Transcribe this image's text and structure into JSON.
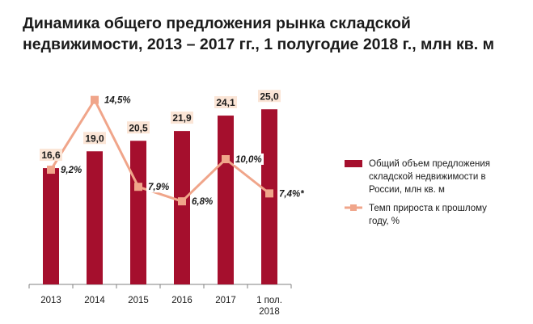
{
  "chart_data": {
    "type": "bar+line",
    "title_lines": [
      "Динамика общего предложения рынка складской",
      "недвижимости, 2013 – 2017 гг., 1 полугодие 2018 г., млн кв. м"
    ],
    "categories": [
      [
        "2013"
      ],
      [
        "2014"
      ],
      [
        "2015"
      ],
      [
        "2016"
      ],
      [
        "2017"
      ],
      [
        "1 пол.",
        "2018"
      ]
    ],
    "series": [
      {
        "name": "Общий объем предложения складской недвижимости в России, млн кв. м",
        "kind": "bar",
        "color": "#a50f2d",
        "values": [
          16.6,
          19.0,
          20.5,
          21.9,
          24.1,
          25.0
        ],
        "labels": [
          "16,6",
          "19,0",
          "20,5",
          "21,9",
          "24,1",
          "25,0"
        ]
      },
      {
        "name": "Темп прироста к прошлому году, %",
        "kind": "line",
        "color": "#f0a58a",
        "values": [
          9.2,
          14.5,
          7.9,
          6.8,
          10.0,
          7.4
        ],
        "labels": [
          "9,2%",
          "14,5%",
          "7,9%",
          "6,8%",
          "10,0%",
          "7,4%*"
        ]
      }
    ],
    "bar_axis_range": [
      0,
      30
    ],
    "line_axis_range": [
      0,
      20
    ],
    "legend_position": "right"
  },
  "legend": {
    "bar_lines": [
      "Общий объем предложения",
      "складской недвижимости в",
      "России, млн кв. м"
    ],
    "line_lines": [
      "Темп прироста к прошлому",
      "году, %"
    ]
  },
  "colors": {
    "label_box": "#fbe5d6",
    "axis": "#808080"
  }
}
